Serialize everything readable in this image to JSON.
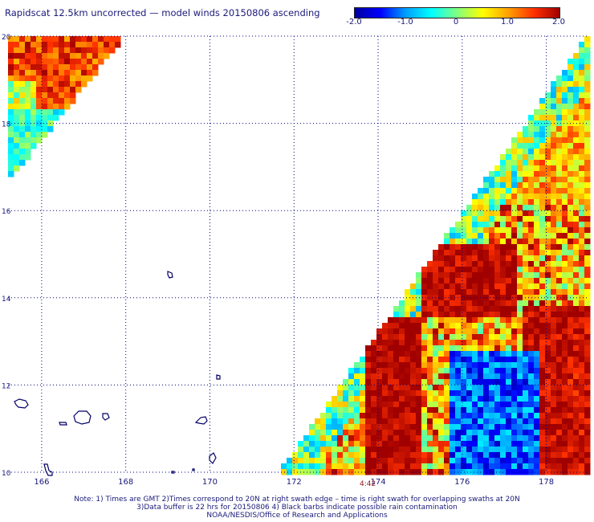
{
  "title": "Rapidscat 12.5km uncorrected — model winds 20150806 ascending",
  "colorbar": {
    "ticks": [
      "-2.0",
      "-1.0",
      "0",
      "1.0",
      "2.0"
    ],
    "tick_values": [
      -2.0,
      -1.0,
      0,
      1.0,
      2.0
    ],
    "range": [
      -2.0,
      2.0
    ],
    "colors": [
      "#0000a0",
      "#0000ff",
      "#00a0ff",
      "#00ffff",
      "#80ff80",
      "#ffff00",
      "#ffa000",
      "#ff3000",
      "#a00000"
    ]
  },
  "map": {
    "lon_ticks": [
      "166",
      "168",
      "170",
      "172",
      "174",
      "176",
      "178"
    ],
    "lon_values": [
      166,
      168,
      170,
      172,
      174,
      176,
      178
    ],
    "lat_ticks": [
      "10",
      "12",
      "14",
      "16",
      "18",
      "20"
    ],
    "lat_values": [
      10,
      12,
      14,
      16,
      18,
      20
    ],
    "lon_range": [
      165.2,
      179.0
    ],
    "lat_range": [
      10,
      20
    ],
    "grid": true,
    "swath_time": "4:42",
    "outline_color": "#000066",
    "grid_color": "#000080"
  },
  "notes": [
    "Note: 1) Times are GMT 2)Times correspond to 20N at right swath edge – time is right swath for overlapping swaths at 20N",
    "3)Data buffer is 22 hrs for 20150806 4) Black barbs indicate possible rain contamination",
    "NOAA/NESDIS/Office of Research and Applications"
  ]
}
